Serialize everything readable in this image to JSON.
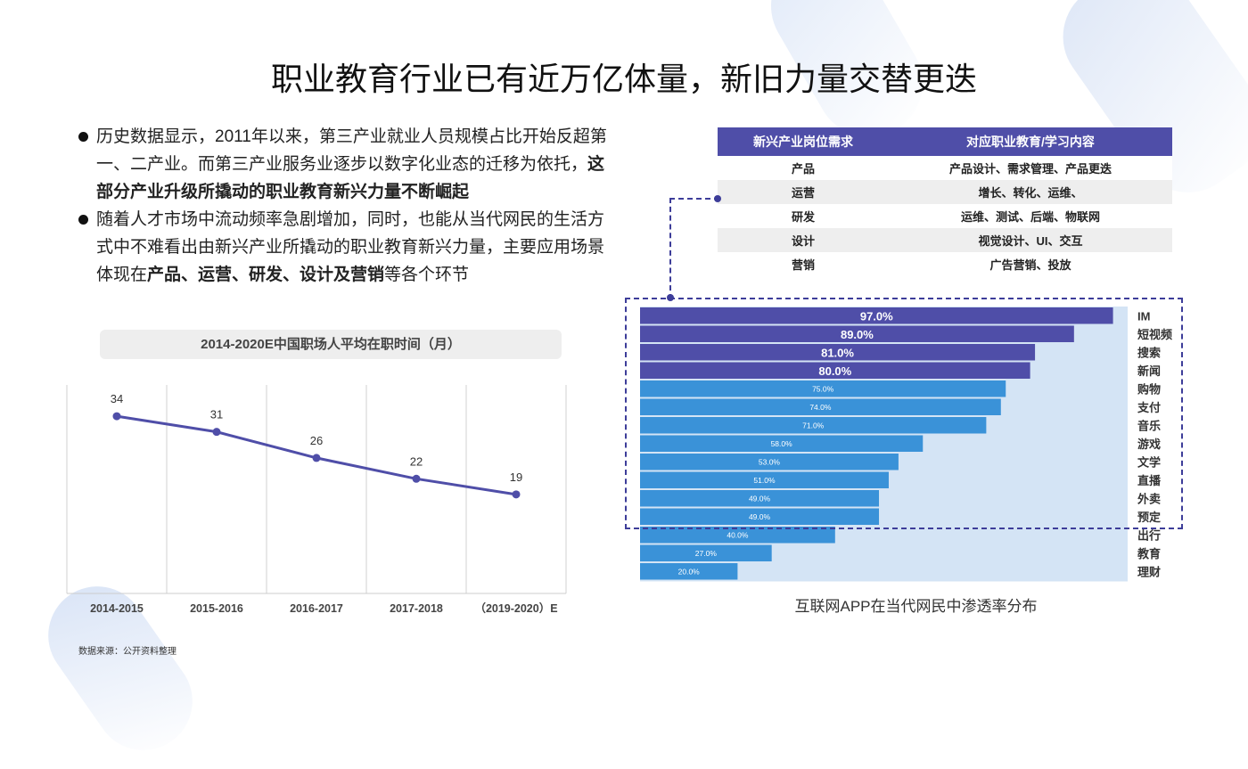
{
  "page": {
    "title": "职业教育行业已有近万亿体量，新旧力量交替更迭",
    "source_note": "数据来源：公开资料整理"
  },
  "bullets": [
    {
      "lines": [
        [
          {
            "t": "历史数据显示，2011年以来，第三产业就业人员规模占比开始反超第",
            "b": false
          }
        ],
        [
          {
            "t": "一、二产业。而第三产业服务业逐步以数字化业态的迁移为依托，",
            "b": false
          },
          {
            "t": "这",
            "b": true
          }
        ],
        [
          {
            "t": "部分产业升级所撬动的职业教育新兴力量不断崛起",
            "b": true
          }
        ]
      ]
    },
    {
      "lines": [
        [
          {
            "t": "随着人才市场中流动频率急剧增加，同时，也能从当代网民的生活方",
            "b": false
          }
        ],
        [
          {
            "t": "式中不难看出由新兴产业所撬动的职业教育新兴力量，主要应用场景",
            "b": false
          }
        ],
        [
          {
            "t": "体现在",
            "b": false
          },
          {
            "t": "产品、运营、研发、设计及营销",
            "b": true
          },
          {
            "t": "等各个环节",
            "b": false
          }
        ]
      ]
    }
  ],
  "table": {
    "headers": [
      "新兴产业岗位需求",
      "对应职业教育/学习内容"
    ],
    "rows": [
      [
        "产品",
        "产品设计、需求管理、产品更迭"
      ],
      [
        "运营",
        "增长、转化、运维、"
      ],
      [
        "研发",
        "运维、测试、后端、物联网"
      ],
      [
        "设计",
        "视觉设计、UI、交互"
      ],
      [
        "营销",
        "广告营销、投放"
      ]
    ]
  },
  "colors": {
    "accent": "#4f4ea8",
    "line": "#4f4ea8",
    "bar_dark": "#4f4ea8",
    "bar_light": "#3a92d8",
    "bar_bg": "#d4e4f5"
  },
  "chart_data": [
    {
      "type": "line",
      "title": "2014-2020E中国职场人平均在职时间（月）",
      "categories": [
        "2014-2015",
        "2015-2016",
        "2016-2017",
        "2017-2018",
        "（2019-2020）E"
      ],
      "values": [
        34,
        31,
        26,
        22,
        19
      ],
      "ylim": [
        0,
        40
      ],
      "grid": "vertical"
    },
    {
      "type": "bar",
      "orientation": "horizontal",
      "title": "互联网APP在当代网民中渗透率分布",
      "categories": [
        "IM",
        "短视频",
        "搜索",
        "新闻",
        "购物",
        "支付",
        "音乐",
        "游戏",
        "文学",
        "直播",
        "外卖",
        "预定",
        "出行",
        "教育",
        "理财"
      ],
      "values": [
        97.0,
        89.0,
        81.0,
        80.0,
        75.0,
        74.0,
        71.0,
        58.0,
        53.0,
        51.0,
        49.0,
        49.0,
        40.0,
        27.0,
        20.0
      ],
      "value_labels": [
        "97.0%",
        "89.0%",
        "81.0%",
        "80.0%",
        "75.0%",
        "74.0%",
        "71.0%",
        "58.0%",
        "53.0%",
        "51.0%",
        "49.0%",
        "49.0%",
        "40.0%",
        "27.0%",
        "20.0%"
      ],
      "highlight_count": 4,
      "xlim": [
        0,
        100
      ]
    }
  ]
}
